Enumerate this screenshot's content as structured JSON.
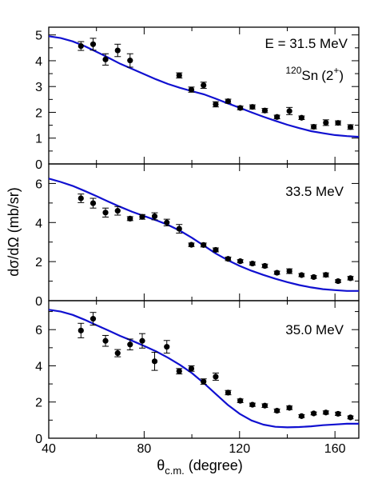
{
  "chart_data": [
    {
      "type": "scatter",
      "title": "",
      "annotation": "E = 31.5 MeV",
      "nucleus": {
        "mass": "120",
        "symbol": "Sn",
        "state": "(2",
        "sup": "+",
        "close": ")"
      },
      "xlim": [
        40,
        170
      ],
      "ylim": [
        0,
        5.3
      ],
      "yticks": [
        "0",
        "1",
        "2",
        "3",
        "4",
        "5"
      ],
      "ytick_values": [
        0,
        1,
        2,
        3,
        4,
        5
      ],
      "points": [
        {
          "x": 53.5,
          "y": 4.57,
          "err": 0.17
        },
        {
          "x": 58.6,
          "y": 4.64,
          "err": 0.23
        },
        {
          "x": 63.8,
          "y": 4.05,
          "err": 0.22
        },
        {
          "x": 68.9,
          "y": 4.4,
          "err": 0.24
        },
        {
          "x": 74.1,
          "y": 4.01,
          "err": 0.26
        },
        {
          "x": 94.7,
          "y": 3.43,
          "err": 0.1
        },
        {
          "x": 99.8,
          "y": 2.88,
          "err": 0.1
        },
        {
          "x": 104.9,
          "y": 3.05,
          "err": 0.12
        },
        {
          "x": 110.0,
          "y": 2.31,
          "err": 0.1
        },
        {
          "x": 115.2,
          "y": 2.43,
          "err": 0.08
        },
        {
          "x": 120.3,
          "y": 2.17,
          "err": 0.07
        },
        {
          "x": 125.4,
          "y": 2.21,
          "err": 0.08
        },
        {
          "x": 130.6,
          "y": 2.07,
          "err": 0.08
        },
        {
          "x": 135.7,
          "y": 1.82,
          "err": 0.07
        },
        {
          "x": 140.9,
          "y": 2.05,
          "err": 0.14
        },
        {
          "x": 146.0,
          "y": 1.79,
          "err": 0.07
        },
        {
          "x": 151.1,
          "y": 1.44,
          "err": 0.08
        },
        {
          "x": 156.2,
          "y": 1.6,
          "err": 0.11
        },
        {
          "x": 161.3,
          "y": 1.59,
          "err": 0.08
        },
        {
          "x": 166.5,
          "y": 1.43,
          "err": 0.09
        }
      ],
      "curve": [
        [
          40,
          4.95
        ],
        [
          45,
          4.88
        ],
        [
          50,
          4.75
        ],
        [
          55,
          4.57
        ],
        [
          60,
          4.35
        ],
        [
          65,
          4.12
        ],
        [
          70,
          3.88
        ],
        [
          75,
          3.68
        ],
        [
          80,
          3.48
        ],
        [
          85,
          3.28
        ],
        [
          90,
          3.1
        ],
        [
          95,
          2.95
        ],
        [
          100,
          2.82
        ],
        [
          105,
          2.7
        ],
        [
          110,
          2.53
        ],
        [
          115,
          2.35
        ],
        [
          120,
          2.18
        ],
        [
          125,
          2.0
        ],
        [
          130,
          1.83
        ],
        [
          135,
          1.67
        ],
        [
          140,
          1.52
        ],
        [
          145,
          1.39
        ],
        [
          150,
          1.27
        ],
        [
          155,
          1.19
        ],
        [
          160,
          1.12
        ],
        [
          165,
          1.08
        ],
        [
          170,
          1.05
        ]
      ]
    },
    {
      "type": "scatter",
      "title": "",
      "annotation": "33.5 MeV",
      "xlim": [
        40,
        170
      ],
      "ylim": [
        0,
        7.0
      ],
      "yticks": [
        "0",
        "2",
        "4",
        "6"
      ],
      "ytick_values": [
        0,
        2,
        4,
        6
      ],
      "points": [
        {
          "x": 53.5,
          "y": 5.24,
          "err": 0.22
        },
        {
          "x": 58.6,
          "y": 4.99,
          "err": 0.25
        },
        {
          "x": 63.8,
          "y": 4.51,
          "err": 0.23
        },
        {
          "x": 68.9,
          "y": 4.6,
          "err": 0.22
        },
        {
          "x": 74.1,
          "y": 4.2,
          "err": 0.1
        },
        {
          "x": 79.2,
          "y": 4.29,
          "err": 0.12
        },
        {
          "x": 84.4,
          "y": 4.32,
          "err": 0.18
        },
        {
          "x": 89.5,
          "y": 4.0,
          "err": 0.17
        },
        {
          "x": 94.7,
          "y": 3.68,
          "err": 0.22
        },
        {
          "x": 99.8,
          "y": 2.86,
          "err": 0.09
        },
        {
          "x": 104.9,
          "y": 2.85,
          "err": 0.1
        },
        {
          "x": 110.0,
          "y": 2.6,
          "err": 0.1
        },
        {
          "x": 115.2,
          "y": 2.14,
          "err": 0.09
        },
        {
          "x": 120.3,
          "y": 2.02,
          "err": 0.08
        },
        {
          "x": 125.4,
          "y": 1.9,
          "err": 0.08
        },
        {
          "x": 130.6,
          "y": 1.78,
          "err": 0.09
        },
        {
          "x": 135.7,
          "y": 1.43,
          "err": 0.08
        },
        {
          "x": 140.9,
          "y": 1.51,
          "err": 0.12
        },
        {
          "x": 146.0,
          "y": 1.31,
          "err": 0.08
        },
        {
          "x": 151.1,
          "y": 1.21,
          "err": 0.07
        },
        {
          "x": 156.2,
          "y": 1.32,
          "err": 0.1
        },
        {
          "x": 161.3,
          "y": 1.0,
          "err": 0.07
        },
        {
          "x": 166.5,
          "y": 1.15,
          "err": 0.09
        }
      ],
      "curve": [
        [
          40,
          6.25
        ],
        [
          45,
          6.08
        ],
        [
          50,
          5.88
        ],
        [
          55,
          5.62
        ],
        [
          60,
          5.35
        ],
        [
          65,
          5.07
        ],
        [
          70,
          4.8
        ],
        [
          75,
          4.55
        ],
        [
          80,
          4.33
        ],
        [
          85,
          4.12
        ],
        [
          90,
          3.88
        ],
        [
          95,
          3.58
        ],
        [
          100,
          3.22
        ],
        [
          105,
          2.82
        ],
        [
          110,
          2.42
        ],
        [
          115,
          2.08
        ],
        [
          120,
          1.78
        ],
        [
          125,
          1.53
        ],
        [
          130,
          1.32
        ],
        [
          135,
          1.12
        ],
        [
          140,
          0.95
        ],
        [
          145,
          0.8
        ],
        [
          150,
          0.68
        ],
        [
          155,
          0.59
        ],
        [
          160,
          0.54
        ],
        [
          165,
          0.5
        ],
        [
          170,
          0.5
        ]
      ]
    },
    {
      "type": "scatter",
      "title": "",
      "annotation": "35.0 MeV",
      "xlabel_main": "θ",
      "xlabel_sub": "c.m.",
      "xlabel_rest": " (degree)",
      "ylabel": "dσ/dΩ (mb/sr)",
      "xlim": [
        40,
        170
      ],
      "ylim": [
        0,
        7.6
      ],
      "yticks": [
        "0",
        "2",
        "4",
        "6"
      ],
      "ytick_values": [
        0,
        2,
        4,
        6
      ],
      "xticks": [
        "40",
        "80",
        "120",
        "160"
      ],
      "xtick_values": [
        40,
        80,
        120,
        160
      ],
      "points": [
        {
          "x": 53.5,
          "y": 5.95,
          "err": 0.4
        },
        {
          "x": 58.6,
          "y": 6.6,
          "err": 0.35
        },
        {
          "x": 63.8,
          "y": 5.38,
          "err": 0.3
        },
        {
          "x": 68.9,
          "y": 4.7,
          "err": 0.2
        },
        {
          "x": 74.1,
          "y": 5.18,
          "err": 0.3
        },
        {
          "x": 79.2,
          "y": 5.38,
          "err": 0.4
        },
        {
          "x": 84.4,
          "y": 4.25,
          "err": 0.5
        },
        {
          "x": 89.5,
          "y": 5.05,
          "err": 0.35
        },
        {
          "x": 94.7,
          "y": 3.7,
          "err": 0.15
        },
        {
          "x": 99.8,
          "y": 3.85,
          "err": 0.15
        },
        {
          "x": 104.9,
          "y": 3.13,
          "err": 0.15
        },
        {
          "x": 110.0,
          "y": 3.4,
          "err": 0.2
        },
        {
          "x": 115.2,
          "y": 2.52,
          "err": 0.12
        },
        {
          "x": 120.3,
          "y": 2.07,
          "err": 0.1
        },
        {
          "x": 125.4,
          "y": 1.85,
          "err": 0.09
        },
        {
          "x": 130.6,
          "y": 1.8,
          "err": 0.1
        },
        {
          "x": 135.7,
          "y": 1.52,
          "err": 0.09
        },
        {
          "x": 140.9,
          "y": 1.68,
          "err": 0.1
        },
        {
          "x": 146.0,
          "y": 1.22,
          "err": 0.08
        },
        {
          "x": 151.1,
          "y": 1.37,
          "err": 0.08
        },
        {
          "x": 156.2,
          "y": 1.42,
          "err": 0.09
        },
        {
          "x": 161.3,
          "y": 1.35,
          "err": 0.09
        },
        {
          "x": 166.5,
          "y": 1.15,
          "err": 0.08
        }
      ],
      "curve": [
        [
          40,
          7.1
        ],
        [
          45,
          7.0
        ],
        [
          50,
          6.82
        ],
        [
          55,
          6.55
        ],
        [
          60,
          6.25
        ],
        [
          65,
          5.95
        ],
        [
          70,
          5.65
        ],
        [
          75,
          5.38
        ],
        [
          80,
          5.1
        ],
        [
          85,
          4.8
        ],
        [
          90,
          4.45
        ],
        [
          95,
          4.05
        ],
        [
          100,
          3.6
        ],
        [
          105,
          3.05
        ],
        [
          110,
          2.45
        ],
        [
          115,
          1.85
        ],
        [
          120,
          1.35
        ],
        [
          125,
          0.98
        ],
        [
          130,
          0.75
        ],
        [
          135,
          0.63
        ],
        [
          140,
          0.6
        ],
        [
          145,
          0.62
        ],
        [
          150,
          0.66
        ],
        [
          155,
          0.72
        ],
        [
          160,
          0.76
        ],
        [
          165,
          0.8
        ],
        [
          170,
          0.8
        ]
      ]
    }
  ],
  "colors": {
    "curve": "#1010d0",
    "points": "#000000",
    "axes": "#000000"
  }
}
